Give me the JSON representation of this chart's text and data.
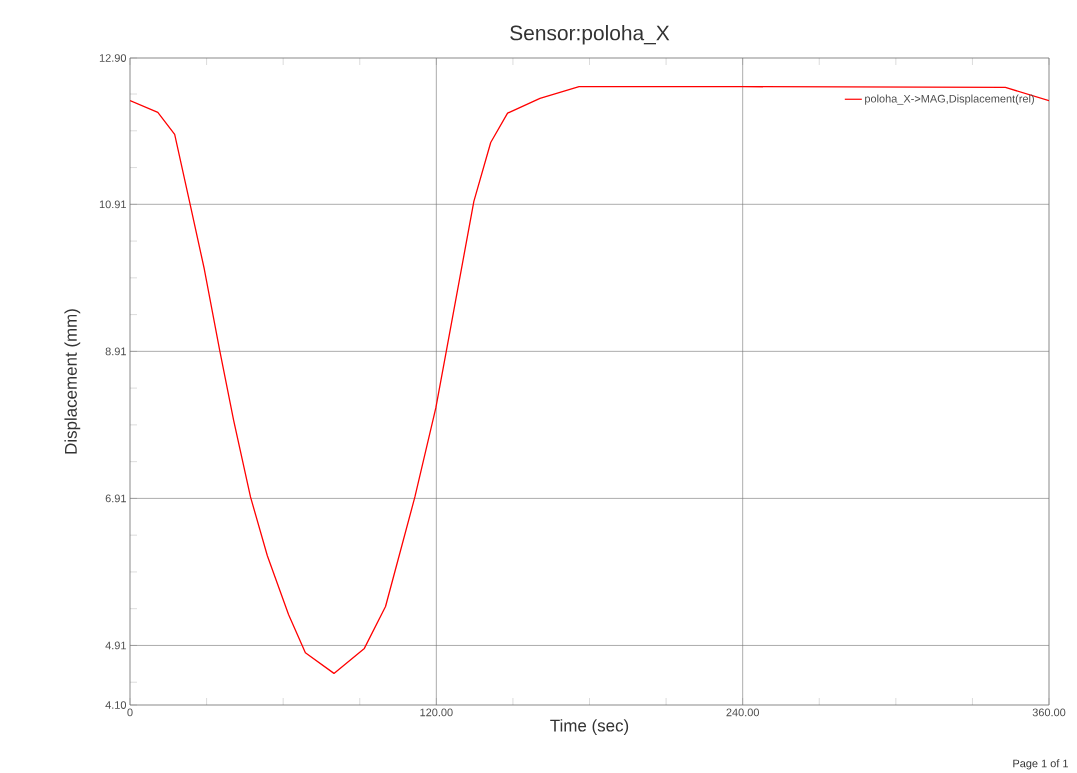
{
  "chart_data": {
    "type": "line",
    "title": "Sensor:poloha_X",
    "xlabel": "Time (sec)",
    "ylabel": "Displacement (mm)",
    "annotations": [
      "Page 1 of 1"
    ],
    "x": [
      0,
      10.9,
      17.5,
      23.3,
      29.1,
      35.1,
      40.6,
      47.2,
      53.8,
      62.1,
      68.7,
      79.9,
      91.8,
      100.1,
      111.6,
      119.8,
      124,
      134.7,
      141.3,
      147.9,
      160.6,
      175.9,
      240,
      342.9,
      360
    ],
    "series": [
      {
        "name": "poloha_X->MAG,Displacement(rel)",
        "color": "#ff0000",
        "values": [
          12.32,
          12.16,
          11.86,
          10.95,
          10.03,
          8.93,
          7.97,
          6.93,
          6.13,
          5.33,
          4.81,
          4.53,
          4.87,
          5.44,
          6.93,
          8.14,
          8.93,
          10.95,
          11.75,
          12.15,
          12.35,
          12.51,
          12.51,
          12.5,
          12.32
        ]
      }
    ],
    "xlim": [
      0,
      360
    ],
    "xticks": [
      0,
      {
        "value": 30,
        "label": null
      },
      {
        "value": 60,
        "label": null
      },
      {
        "value": 90,
        "label": null
      },
      {
        "value": 120,
        "label": "120.00"
      },
      {
        "value": 150,
        "label": null
      },
      {
        "value": 180,
        "label": null
      },
      {
        "value": 210,
        "label": null
      },
      {
        "value": 240,
        "label": "240.00"
      },
      {
        "value": 270,
        "label": null
      },
      {
        "value": 300,
        "label": null
      },
      {
        "value": 330,
        "label": null
      },
      {
        "value": 360,
        "label": "360.00"
      }
    ],
    "ylim": [
      4.1,
      12.9
    ],
    "yticks": [
      {
        "value": 4.1,
        "label": "4.10"
      },
      {
        "value": 4.41,
        "label": null
      },
      4.91,
      {
        "value": 5.41,
        "label": null
      },
      {
        "value": 5.91,
        "label": null
      },
      {
        "value": 6.41,
        "label": null
      },
      6.91,
      {
        "value": 7.41,
        "label": null
      },
      {
        "value": 7.91,
        "label": null
      },
      {
        "value": 8.41,
        "label": null
      },
      8.91,
      {
        "value": 9.41,
        "label": null
      },
      {
        "value": 9.91,
        "label": null
      },
      {
        "value": 10.41,
        "label": null
      },
      10.91,
      {
        "value": 11.41,
        "label": null
      },
      {
        "value": 11.91,
        "label": null
      },
      {
        "value": 12.41,
        "label": null
      },
      {
        "value": 12.9,
        "label": "12.90"
      }
    ],
    "grid": true,
    "legend": "top right",
    "marker": "none",
    "line_style": "solid"
  }
}
